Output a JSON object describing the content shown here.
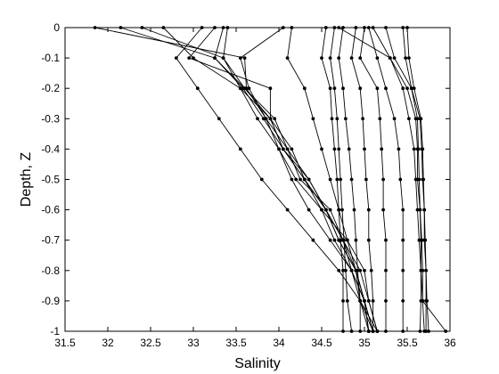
{
  "chart_data": {
    "type": "line",
    "title": "",
    "xlabel": "Salinity",
    "ylabel": "Depth, Z",
    "xlim": [
      31.5,
      36
    ],
    "ylim": [
      -1,
      0
    ],
    "xticks": [
      31.5,
      32,
      32.5,
      33,
      33.5,
      34,
      34.5,
      35,
      35.5,
      36
    ],
    "xtick_labels": [
      "31.5",
      "32",
      "32.5",
      "33",
      "33.5",
      "34",
      "34.5",
      "35",
      "35.5",
      "36"
    ],
    "yticks": [
      0,
      -0.1,
      -0.2,
      -0.3,
      -0.4,
      -0.5,
      -0.6,
      -0.7,
      -0.8,
      -0.9,
      -1
    ],
    "ytick_labels": [
      "0",
      "-0.1",
      "-0.2",
      "-0.3",
      "-0.4",
      "-0.5",
      "-0.6",
      "-0.7",
      "-0.8",
      "-0.9",
      "-1"
    ],
    "grid": false,
    "legend": "none",
    "line_color": "#000000",
    "marker": "dot",
    "depths": [
      0,
      -0.1,
      -0.2,
      -0.3,
      -0.4,
      -0.5,
      -0.6,
      -0.7,
      -0.8,
      -0.9,
      -1
    ],
    "series": [
      {
        "values": [
          31.85,
          33.6,
          33.62,
          33.85,
          34.1,
          34.25,
          34.6,
          34.75,
          34.85,
          35.0,
          35.05
        ]
      },
      {
        "values": [
          32.15,
          33.25,
          33.58,
          33.82,
          34.05,
          34.35,
          34.55,
          34.7,
          34.9,
          34.95,
          35.1
        ]
      },
      {
        "values": [
          32.4,
          33.35,
          33.55,
          33.75,
          34.0,
          34.2,
          34.5,
          34.65,
          34.85,
          34.95,
          35.05
        ]
      },
      {
        "values": [
          32.65,
          33.0,
          33.55,
          33.9,
          34.15,
          34.3,
          34.55,
          34.75,
          34.95,
          35.05,
          35.15
        ]
      },
      {
        "values": [
          33.1,
          32.8,
          33.05,
          33.3,
          33.55,
          33.8,
          34.1,
          34.4,
          34.7,
          34.95,
          35.15
        ]
      },
      {
        "values": [
          33.25,
          32.95,
          33.9,
          33.9,
          34.05,
          34.3,
          34.5,
          34.8,
          35.0,
          35.05,
          35.15
        ]
      },
      {
        "values": [
          33.35,
          33.25,
          33.6,
          33.95,
          34.1,
          34.35,
          34.55,
          34.75,
          34.9,
          35.0,
          35.1
        ]
      },
      {
        "values": [
          33.4,
          33.35,
          33.6,
          33.9,
          34.05,
          34.3,
          34.55,
          34.7,
          34.9,
          35.0,
          35.05
        ]
      },
      {
        "values": [
          34.05,
          33.55,
          33.65,
          33.85,
          34.0,
          34.15,
          34.35,
          34.6,
          34.85,
          35.0,
          35.1
        ]
      },
      {
        "values": [
          34.15,
          34.1,
          34.3,
          34.4,
          34.5,
          34.6,
          34.7,
          34.8,
          34.9,
          35.0,
          35.05
        ]
      },
      {
        "values": [
          34.55,
          34.5,
          34.6,
          34.62,
          34.65,
          34.68,
          34.7,
          34.72,
          34.75,
          34.75,
          34.75
        ]
      },
      {
        "values": [
          34.65,
          34.6,
          34.65,
          34.68,
          34.7,
          34.72,
          34.74,
          34.76,
          34.78,
          34.8,
          34.85
        ]
      },
      {
        "values": [
          34.75,
          34.7,
          34.75,
          34.78,
          34.82,
          34.85,
          34.88,
          34.9,
          34.92,
          34.95,
          34.95
        ]
      },
      {
        "values": [
          34.9,
          34.85,
          34.95,
          34.98,
          35.0,
          35.02,
          35.05,
          35.05,
          35.08,
          35.1,
          35.1
        ]
      },
      {
        "values": [
          35.0,
          34.95,
          35.15,
          35.18,
          35.2,
          35.22,
          35.22,
          35.25,
          35.25,
          35.25,
          35.25
        ]
      },
      {
        "values": [
          35.05,
          35.15,
          35.25,
          35.35,
          35.4,
          35.42,
          35.45,
          35.45,
          35.45,
          35.45,
          35.45
        ]
      },
      {
        "values": [
          35.1,
          35.3,
          35.5,
          35.6,
          35.62,
          35.62,
          35.65,
          35.66,
          35.66,
          35.66,
          35.65
        ]
      },
      {
        "values": [
          35.25,
          35.35,
          35.55,
          35.62,
          35.63,
          35.64,
          35.65,
          35.67,
          35.68,
          35.68,
          35.7
        ]
      },
      {
        "values": [
          35.45,
          35.48,
          35.55,
          35.65,
          35.67,
          35.68,
          35.7,
          35.7,
          35.72,
          35.72,
          35.72
        ]
      },
      {
        "values": [
          35.5,
          35.52,
          35.58,
          35.66,
          35.68,
          35.69,
          35.7,
          35.71,
          35.72,
          35.73,
          35.75
        ]
      },
      {
        "values": [
          34.7,
          35.3,
          35.45,
          35.52,
          35.58,
          35.6,
          35.62,
          35.64,
          35.66,
          35.68,
          35.95
        ]
      }
    ]
  }
}
